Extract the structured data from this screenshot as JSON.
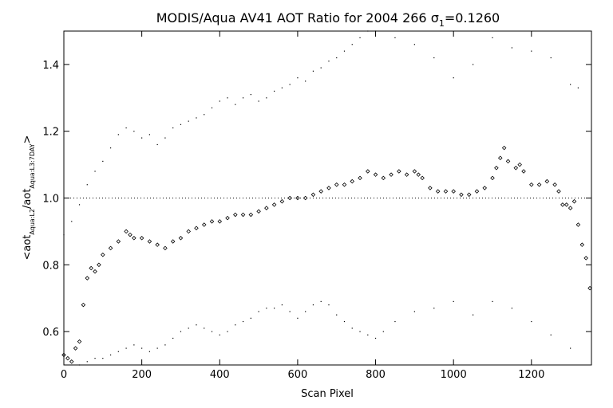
{
  "chart_data": {
    "type": "scatter",
    "title": "MODIS/Aqua AV41 AOT Ratio for 2004 266 σ",
    "title_subscript": "1",
    "title_suffix": "=0.1260",
    "xlabel": "Scan Pixel",
    "ylabel_parts": [
      "<aot",
      "Aqua:L2",
      "/aot",
      "Aqua:L3:7DAY",
      ">"
    ],
    "xlim": [
      0,
      1354
    ],
    "ylim": [
      0.5,
      1.5
    ],
    "x_ticks": [
      0,
      200,
      400,
      600,
      800,
      1000,
      1200
    ],
    "x_tick_labels": [
      "0",
      "200",
      "400",
      "600",
      "800",
      "1000",
      "1200"
    ],
    "y_ticks": [
      0.6,
      0.8,
      1.0,
      1.2,
      1.4
    ],
    "y_tick_labels": [
      "0.6",
      "0.8",
      "1.0",
      "1.2",
      "1.4"
    ],
    "reference_line": 1.0,
    "grid": false,
    "series": [
      {
        "marker": "diamond",
        "x": [
          0,
          10,
          20,
          30,
          40,
          50,
          60,
          70,
          80,
          90,
          100,
          120,
          140,
          160,
          170,
          180,
          200,
          220,
          240,
          260,
          280,
          300,
          320,
          340,
          360,
          380,
          400,
          420,
          440,
          460,
          480,
          500,
          520,
          540,
          560,
          580,
          600,
          620,
          640,
          660,
          680,
          700,
          720,
          740,
          760,
          780,
          800,
          820,
          840,
          860,
          880,
          900,
          910,
          920,
          940,
          960,
          980,
          1000,
          1020,
          1040,
          1060,
          1080,
          1100,
          1110,
          1120,
          1130,
          1140,
          1160,
          1170,
          1180,
          1200,
          1220,
          1240,
          1260,
          1270,
          1280,
          1290,
          1300,
          1310,
          1320,
          1330,
          1340,
          1350
        ],
        "y": [
          0.53,
          0.52,
          0.51,
          0.55,
          0.57,
          0.68,
          0.76,
          0.79,
          0.78,
          0.8,
          0.83,
          0.85,
          0.87,
          0.9,
          0.89,
          0.88,
          0.88,
          0.87,
          0.86,
          0.85,
          0.87,
          0.88,
          0.9,
          0.91,
          0.92,
          0.93,
          0.93,
          0.94,
          0.95,
          0.95,
          0.95,
          0.96,
          0.97,
          0.98,
          0.99,
          1.0,
          1.0,
          1.0,
          1.01,
          1.02,
          1.03,
          1.04,
          1.04,
          1.05,
          1.06,
          1.08,
          1.07,
          1.06,
          1.07,
          1.08,
          1.07,
          1.08,
          1.07,
          1.06,
          1.03,
          1.02,
          1.02,
          1.02,
          1.01,
          1.01,
          1.02,
          1.03,
          1.06,
          1.09,
          1.12,
          1.15,
          1.11,
          1.09,
          1.1,
          1.08,
          1.04,
          1.04,
          1.05,
          1.04,
          1.02,
          0.98,
          0.98,
          0.97,
          0.99,
          0.92,
          0.86,
          0.82,
          0.73
        ]
      },
      {
        "marker": "small-dot",
        "x": [
          0,
          20,
          40,
          60,
          80,
          100,
          120,
          140,
          160,
          180,
          200,
          220,
          240,
          260,
          280,
          300,
          320,
          340,
          360,
          380,
          400,
          420,
          440,
          460,
          480,
          500,
          520,
          540,
          560,
          580,
          600,
          620,
          640,
          660,
          680,
          700,
          720,
          740,
          760,
          780,
          800,
          850,
          900,
          950,
          1000,
          1050,
          1100,
          1150,
          1200,
          1250,
          1300,
          1320
        ],
        "y": [
          0.89,
          0.93,
          0.98,
          1.04,
          1.08,
          1.11,
          1.15,
          1.19,
          1.21,
          1.2,
          1.18,
          1.19,
          1.16,
          1.18,
          1.21,
          1.22,
          1.23,
          1.24,
          1.25,
          1.27,
          1.29,
          1.3,
          1.28,
          1.3,
          1.31,
          1.29,
          1.3,
          1.32,
          1.33,
          1.34,
          1.36,
          1.35,
          1.38,
          1.39,
          1.41,
          1.42,
          1.44,
          1.46,
          1.48,
          1.5,
          1.5,
          1.48,
          1.46,
          1.42,
          1.36,
          1.4,
          1.48,
          1.45,
          1.44,
          1.42,
          1.34,
          1.33
        ]
      },
      {
        "marker": "small-dot",
        "x": [
          40,
          60,
          80,
          100,
          120,
          140,
          160,
          180,
          200,
          220,
          240,
          260,
          280,
          300,
          320,
          340,
          360,
          380,
          400,
          420,
          440,
          460,
          480,
          500,
          520,
          540,
          560,
          580,
          600,
          620,
          640,
          660,
          680,
          700,
          720,
          740,
          760,
          780,
          800,
          820,
          850,
          900,
          950,
          1000,
          1050,
          1100,
          1150,
          1200,
          1250,
          1300
        ],
        "y": [
          0.5,
          0.51,
          0.52,
          0.52,
          0.53,
          0.54,
          0.55,
          0.56,
          0.55,
          0.54,
          0.55,
          0.56,
          0.58,
          0.6,
          0.61,
          0.62,
          0.61,
          0.6,
          0.59,
          0.6,
          0.62,
          0.63,
          0.64,
          0.66,
          0.67,
          0.67,
          0.68,
          0.66,
          0.64,
          0.66,
          0.68,
          0.69,
          0.68,
          0.65,
          0.63,
          0.61,
          0.6,
          0.59,
          0.58,
          0.6,
          0.63,
          0.66,
          0.67,
          0.69,
          0.65,
          0.69,
          0.67,
          0.63,
          0.59,
          0.55
        ]
      }
    ]
  }
}
